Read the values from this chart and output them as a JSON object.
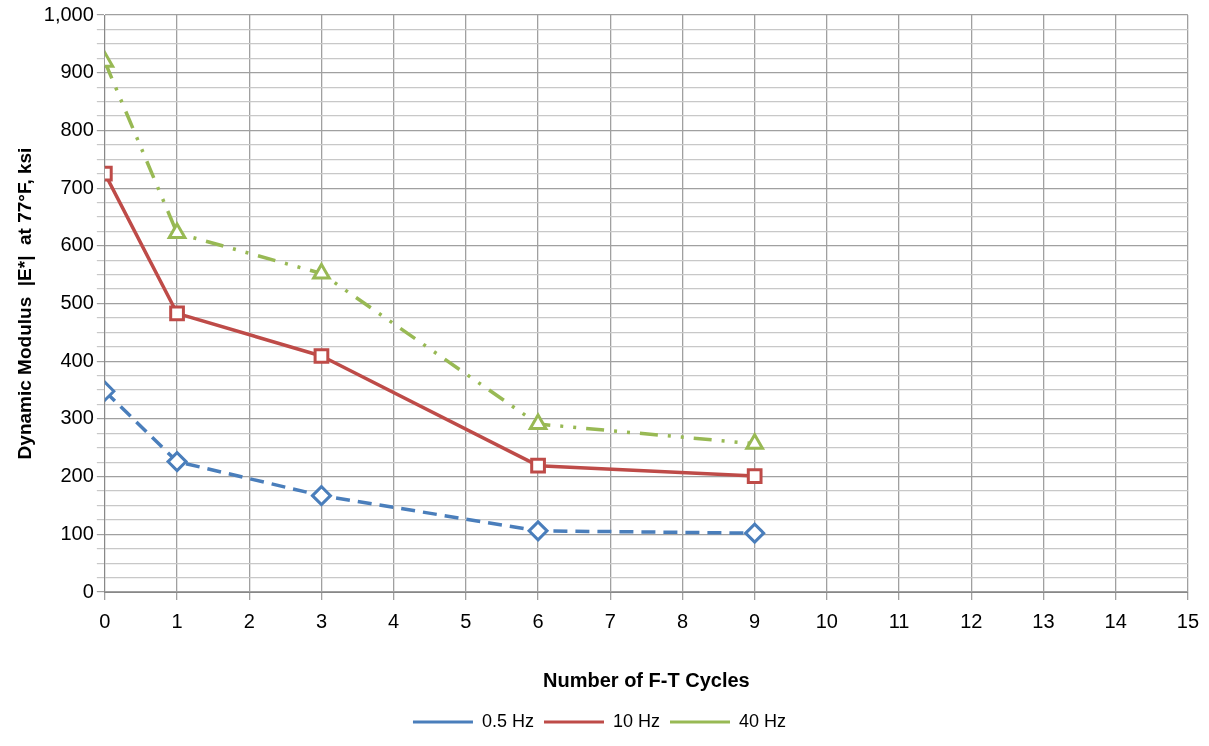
{
  "chart_data": {
    "type": "line",
    "xlabel": "Number of F-T Cycles",
    "ylabel": "Dynamic Modulus  |E*|  at 77°F, ksi",
    "xlim": [
      0,
      15
    ],
    "xticks": [
      0,
      1,
      2,
      3,
      4,
      5,
      6,
      7,
      8,
      9,
      10,
      11,
      12,
      13,
      14,
      15
    ],
    "ylim": [
      0,
      1000
    ],
    "yticks": [
      {
        "value": 0,
        "label": "0"
      },
      {
        "value": 25,
        "label": null
      },
      {
        "value": 50,
        "label": null
      },
      {
        "value": 75,
        "label": null
      },
      {
        "value": 100,
        "label": "100"
      },
      {
        "value": 125,
        "label": null
      },
      {
        "value": 150,
        "label": null
      },
      {
        "value": 175,
        "label": null
      },
      {
        "value": 200,
        "label": "200"
      },
      {
        "value": 225,
        "label": null
      },
      {
        "value": 250,
        "label": null
      },
      {
        "value": 275,
        "label": null
      },
      {
        "value": 300,
        "label": "300"
      },
      {
        "value": 325,
        "label": null
      },
      {
        "value": 350,
        "label": null
      },
      {
        "value": 375,
        "label": null
      },
      {
        "value": 400,
        "label": "400"
      },
      {
        "value": 425,
        "label": null
      },
      {
        "value": 450,
        "label": null
      },
      {
        "value": 475,
        "label": null
      },
      {
        "value": 500,
        "label": "500"
      },
      {
        "value": 525,
        "label": null
      },
      {
        "value": 550,
        "label": null
      },
      {
        "value": 575,
        "label": null
      },
      {
        "value": 600,
        "label": "600"
      },
      {
        "value": 625,
        "label": null
      },
      {
        "value": 650,
        "label": null
      },
      {
        "value": 675,
        "label": null
      },
      {
        "value": 700,
        "label": "700"
      },
      {
        "value": 725,
        "label": null
      },
      {
        "value": 750,
        "label": null
      },
      {
        "value": 775,
        "label": null
      },
      {
        "value": 800,
        "label": "800"
      },
      {
        "value": 825,
        "label": null
      },
      {
        "value": 850,
        "label": null
      },
      {
        "value": 875,
        "label": null
      },
      {
        "value": 900,
        "label": "900"
      },
      {
        "value": 925,
        "label": null
      },
      {
        "value": 950,
        "label": null
      },
      {
        "value": 975,
        "label": null
      },
      {
        "value": 1000,
        "label": "1,000"
      }
    ],
    "x": [
      0,
      1,
      3,
      6,
      9
    ],
    "grid": true,
    "legend": "bottom",
    "series": [
      {
        "name": "0.5 Hz",
        "color": "#4a7ebb",
        "values": [
          348,
          226,
          167,
          106,
          102
        ],
        "marker": "diamond",
        "line_style": "dashed"
      },
      {
        "name": "10 Hz",
        "color": "#be4b48",
        "values": [
          725,
          483,
          409,
          219,
          201
        ],
        "marker": "square",
        "line_style": "solid"
      },
      {
        "name": "40 Hz",
        "color": "#98b954",
        "values": [
          919,
          622,
          552,
          291,
          257
        ],
        "marker": "triangle",
        "line_style": "dotted"
      }
    ]
  }
}
